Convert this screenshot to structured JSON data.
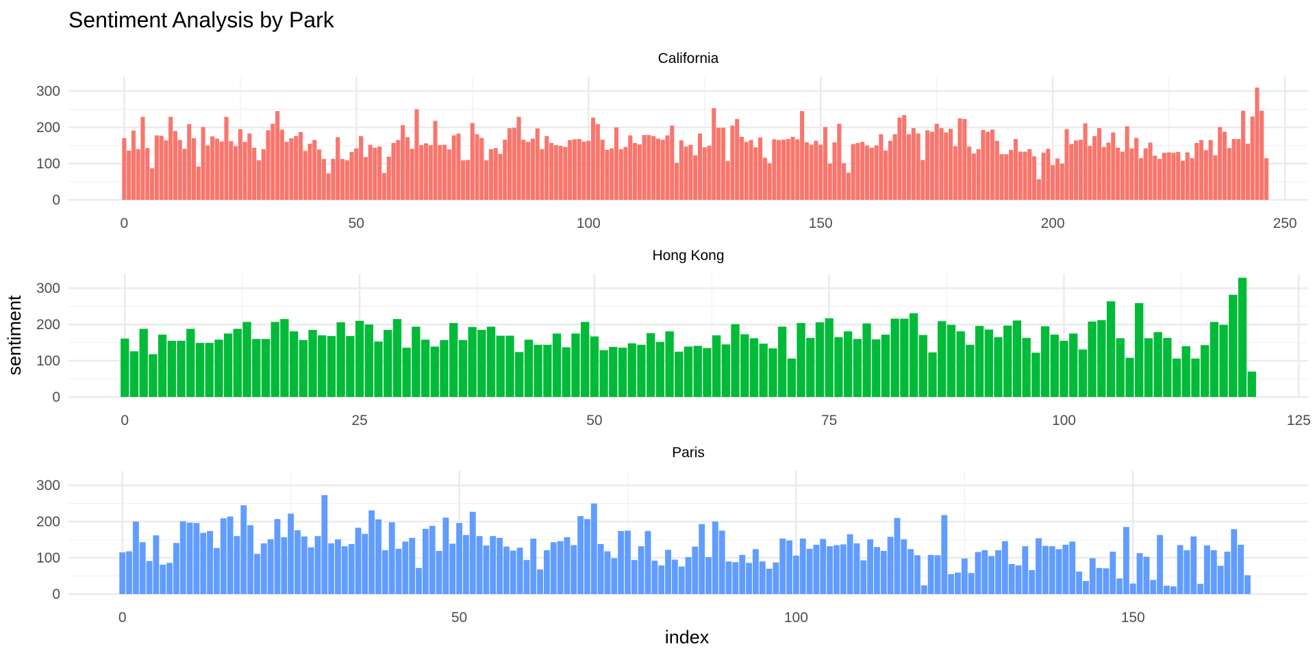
{
  "title": "Sentiment Analysis by Park",
  "xlabel": "index",
  "ylabel": "sentiment",
  "chart_data": {
    "type": "bar",
    "title": "Sentiment Analysis by Park",
    "xlabel": "index",
    "ylabel": "sentiment",
    "grid": true,
    "legend": "none",
    "facets": [
      {
        "name": "California",
        "color": "#F8766D",
        "xlim": [
          -12,
          255
        ],
        "ylim": [
          0,
          340
        ],
        "x_ticks": [
          0,
          50,
          100,
          150,
          200,
          250
        ],
        "y_ticks": [
          0,
          100,
          200,
          300
        ],
        "x_start": 0,
        "values": [
          170,
          136,
          191,
          140,
          229,
          143,
          87,
          178,
          177,
          164,
          229,
          190,
          165,
          141,
          209,
          170,
          92,
          201,
          150,
          175,
          169,
          161,
          229,
          162,
          148,
          195,
          160,
          183,
          144,
          109,
          140,
          192,
          210,
          245,
          194,
          160,
          170,
          176,
          187,
          135,
          155,
          165,
          139,
          113,
          73,
          113,
          173,
          113,
          109,
          132,
          142,
          176,
          118,
          152,
          144,
          147,
          74,
          119,
          157,
          165,
          206,
          173,
          141,
          250,
          151,
          156,
          151,
          218,
          151,
          152,
          139,
          178,
          183,
          109,
          110,
          212,
          181,
          171,
          109,
          140,
          143,
          127,
          166,
          198,
          199,
          229,
          166,
          160,
          169,
          197,
          140,
          176,
          157,
          151,
          149,
          146,
          165,
          167,
          168,
          161,
          163,
          227,
          209,
          166,
          138,
          142,
          200,
          140,
          146,
          178,
          157,
          153,
          179,
          179,
          176,
          169,
          166,
          178,
          205,
          102,
          164,
          147,
          152,
          123,
          183,
          145,
          149,
          253,
          199,
          199,
          107,
          205,
          223,
          174,
          160,
          165,
          145,
          172,
          116,
          101,
          167,
          165,
          166,
          168,
          174,
          167,
          245,
          159,
          152,
          163,
          152,
          201,
          100,
          159,
          210,
          101,
          75,
          154,
          157,
          160,
          150,
          144,
          150,
          181,
          136,
          163,
          181,
          227,
          234,
          181,
          198,
          183,
          110,
          192,
          188,
          210,
          198,
          186,
          196,
          148,
          225,
          223,
          147,
          128,
          140,
          193,
          188,
          194,
          163,
          126,
          126,
          138,
          168,
          133,
          133,
          140,
          120,
          57,
          130,
          141,
          96,
          114,
          100,
          195,
          154,
          164,
          166,
          211,
          149,
          176,
          198,
          146,
          158,
          186,
          144,
          133,
          203,
          142,
          171,
          115,
          142,
          158,
          122,
          113,
          130,
          131,
          130,
          132,
          108,
          131,
          115,
          157,
          165,
          137,
          165,
          123,
          201,
          188,
          143,
          168,
          168,
          246,
          155,
          230,
          310,
          246,
          115
        ]
      },
      {
        "name": "Hong Kong",
        "color": "#00BA38",
        "xlim": [
          -6,
          126
        ],
        "ylim": [
          0,
          340
        ],
        "x_ticks": [
          0,
          25,
          50,
          75,
          100,
          125
        ],
        "y_ticks": [
          0,
          100,
          200,
          300
        ],
        "x_start": 0,
        "values": [
          161,
          126,
          188,
          118,
          172,
          155,
          155,
          188,
          149,
          149,
          158,
          175,
          188,
          207,
          160,
          160,
          207,
          215,
          181,
          157,
          185,
          170,
          168,
          206,
          168,
          210,
          200,
          153,
          185,
          215,
          136,
          194,
          158,
          139,
          157,
          204,
          157,
          193,
          185,
          194,
          169,
          169,
          124,
          158,
          144,
          144,
          175,
          137,
          175,
          207,
          167,
          129,
          138,
          136,
          148,
          144,
          176,
          152,
          181,
          125,
          139,
          141,
          135,
          170,
          145,
          201,
          173,
          162,
          147,
          134,
          194,
          106,
          204,
          163,
          206,
          217,
          165,
          181,
          160,
          203,
          159,
          172,
          216,
          216,
          231,
          171,
          123,
          209,
          199,
          181,
          144,
          196,
          186,
          165,
          197,
          211,
          163,
          122,
          195,
          172,
          155,
          175,
          131,
          208,
          212,
          264,
          162,
          108,
          259,
          162,
          179,
          163,
          106,
          140,
          106,
          143,
          207,
          199,
          282,
          329,
          70
        ]
      },
      {
        "name": "Paris",
        "color": "#619CFF",
        "xlim": [
          -8,
          176
        ],
        "ylim": [
          0,
          340
        ],
        "x_ticks": [
          0,
          50,
          100,
          150
        ],
        "y_ticks": [
          0,
          100,
          200,
          300
        ],
        "x_start": 0,
        "values": [
          115,
          118,
          200,
          143,
          91,
          162,
          81,
          86,
          141,
          201,
          197,
          196,
          169,
          174,
          127,
          209,
          214,
          160,
          245,
          190,
          111,
          140,
          151,
          207,
          157,
          222,
          176,
          159,
          129,
          160,
          273,
          140,
          151,
          132,
          138,
          183,
          166,
          231,
          206,
          121,
          198,
          125,
          145,
          155,
          72,
          180,
          188,
          119,
          211,
          139,
          196,
          163,
          227,
          160,
          134,
          160,
          155,
          131,
          120,
          128,
          94,
          153,
          68,
          121,
          143,
          146,
          157,
          135,
          215,
          207,
          250,
          138,
          118,
          99,
          174,
          175,
          94,
          132,
          174,
          92,
          79,
          122,
          95,
          76,
          102,
          131,
          193,
          102,
          200,
          175,
          90,
          88,
          108,
          86,
          124,
          90,
          70,
          87,
          153,
          148,
          106,
          153,
          125,
          136,
          152,
          132,
          135,
          137,
          165,
          140,
          93,
          151,
          130,
          119,
          158,
          210,
          151,
          124,
          107,
          24,
          108,
          107,
          218,
          55,
          59,
          98,
          58,
          116,
          121,
          105,
          121,
          146,
          83,
          79,
          132,
          66,
          154,
          133,
          132,
          124,
          136,
          145,
          62,
          36,
          99,
          72,
          71,
          117,
          43,
          185,
          29,
          113,
          103,
          39,
          163,
          23,
          21,
          135,
          121,
          159,
          28,
          134,
          121,
          78,
          117,
          179,
          136,
          52
        ]
      }
    ]
  }
}
